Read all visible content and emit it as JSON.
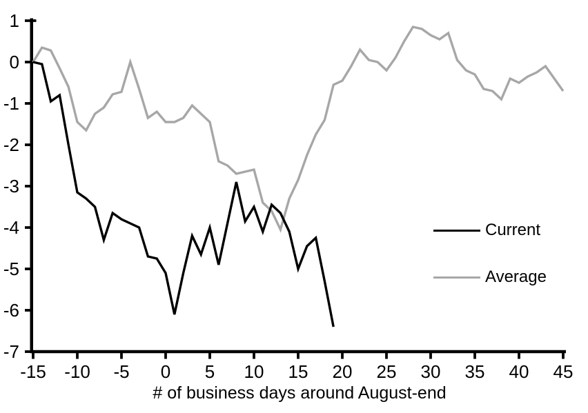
{
  "chart_data": {
    "type": "line",
    "title": "",
    "xlabel": "# of business days around August-end",
    "ylabel": "",
    "xlim": [
      -15,
      45
    ],
    "ylim": [
      -7,
      1
    ],
    "x_ticks": [
      -15,
      -10,
      -5,
      0,
      5,
      10,
      15,
      20,
      25,
      30,
      35,
      40,
      45
    ],
    "y_ticks": [
      1,
      0,
      -1,
      -2,
      -3,
      -4,
      -5,
      -6,
      -7
    ],
    "grid": false,
    "background": "#ffffff",
    "axis_color": "#000000",
    "legend": {
      "position": "middle-right"
    },
    "series": [
      {
        "name": "Current",
        "color": "#000000",
        "x": [
          -15,
          -14,
          -13,
          -12,
          -11,
          -10,
          -9,
          -8,
          -7,
          -6,
          -5,
          -4,
          -3,
          -2,
          -1,
          0,
          1,
          2,
          3,
          4,
          5,
          6,
          7,
          8,
          9,
          10,
          11,
          12,
          13,
          14,
          15,
          16,
          17,
          18,
          19
        ],
        "y": [
          0,
          -0.05,
          -0.95,
          -0.8,
          -2.0,
          -3.15,
          -3.3,
          -3.5,
          -4.3,
          -3.65,
          -3.8,
          -3.9,
          -4.0,
          -4.7,
          -4.75,
          -5.1,
          -6.1,
          -5.1,
          -4.2,
          -4.65,
          -4.0,
          -4.9,
          -3.9,
          -2.9,
          -3.85,
          -3.5,
          -4.1,
          -3.45,
          -3.65,
          -4.1,
          -5.0,
          -4.45,
          -4.25,
          -5.3,
          -6.4
        ]
      },
      {
        "name": "Average",
        "color": "#a7a7a7",
        "x": [
          -15,
          -14,
          -13,
          -12,
          -11,
          -10,
          -9,
          -8,
          -7,
          -6,
          -5,
          -4,
          -3,
          -2,
          -1,
          0,
          1,
          2,
          3,
          4,
          5,
          6,
          7,
          8,
          9,
          10,
          11,
          12,
          13,
          14,
          15,
          16,
          17,
          18,
          19,
          20,
          21,
          22,
          23,
          24,
          25,
          26,
          27,
          28,
          29,
          30,
          31,
          32,
          33,
          34,
          35,
          36,
          37,
          38,
          39,
          40,
          41,
          42,
          43,
          44,
          45
        ],
        "y": [
          0,
          0.35,
          0.28,
          -0.15,
          -0.6,
          -1.45,
          -1.65,
          -1.25,
          -1.1,
          -0.78,
          -0.72,
          0.0,
          -0.65,
          -1.35,
          -1.2,
          -1.45,
          -1.45,
          -1.35,
          -1.05,
          -1.25,
          -1.45,
          -2.4,
          -2.5,
          -2.7,
          -2.65,
          -2.6,
          -3.4,
          -3.6,
          -4.05,
          -3.3,
          -2.85,
          -2.25,
          -1.75,
          -1.4,
          -0.55,
          -0.45,
          -0.1,
          0.3,
          0.05,
          0.0,
          -0.2,
          0.1,
          0.5,
          0.85,
          0.8,
          0.65,
          0.55,
          0.7,
          0.05,
          -0.2,
          -0.3,
          -0.65,
          -0.7,
          -0.9,
          -0.4,
          -0.5,
          -0.35,
          -0.25,
          -0.1,
          -0.4,
          -0.7
        ]
      }
    ]
  }
}
